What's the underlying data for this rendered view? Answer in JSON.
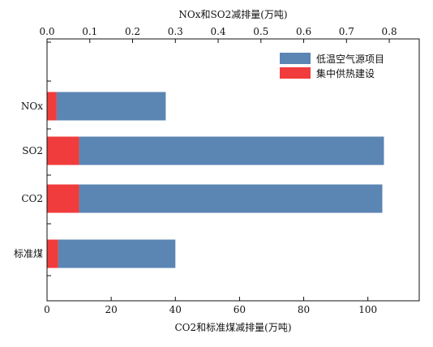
{
  "chart_data": {
    "type": "bar",
    "orientation": "horizontal",
    "stacked": true,
    "categories": [
      "NOx",
      "SO2",
      "CO2",
      "标准煤"
    ],
    "series": [
      {
        "name": "集中供热建设",
        "color": "#f03c3c",
        "values": [
          3.0,
          10.0,
          10.0,
          3.5
        ]
      },
      {
        "name": "低温空气源项目",
        "color": "#5b85b3",
        "values": [
          34.0,
          95.0,
          94.5,
          36.5
        ]
      }
    ],
    "xlabel_bottom": "CO2和标准煤减排量(万吨)",
    "xlabel_top": "NOx和SO2减排量(万吨)",
    "xlim_bottom": [
      0,
      116
    ],
    "xlim_top": [
      0,
      0.87
    ],
    "xticks_bottom": [
      "0",
      "20",
      "40",
      "60",
      "80",
      "100"
    ],
    "xticks_top": [
      "0.0",
      "0.1",
      "0.2",
      "0.3",
      "0.4",
      "0.5",
      "0.6",
      "0.7",
      "0.8"
    ],
    "legend_position": "top-right",
    "grid": false
  }
}
